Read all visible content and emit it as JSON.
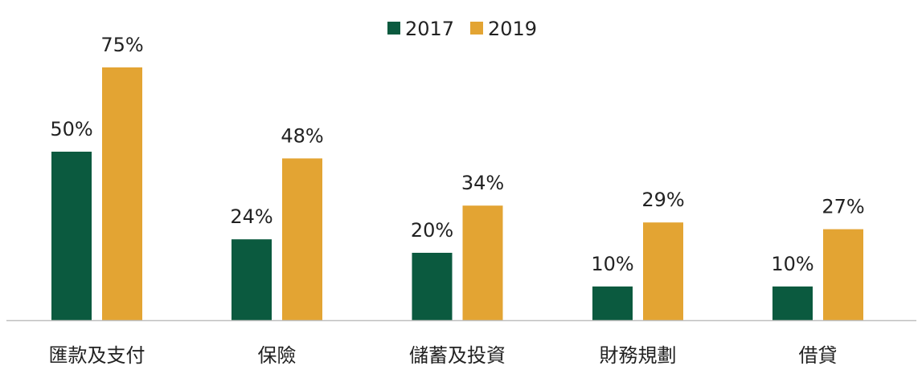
{
  "chart_data": {
    "type": "bar",
    "title": "",
    "xlabel": "",
    "ylabel": "",
    "categories": [
      "匯款及支付",
      "保險",
      "儲蓄及投資",
      "財務規劃",
      "借貸"
    ],
    "series": [
      {
        "name": "2017",
        "values": [
          50,
          24,
          20,
          10,
          10
        ],
        "labels": [
          "50%",
          "24%",
          "20%",
          "10%",
          "10%"
        ],
        "color": "#0b5a3f"
      },
      {
        "name": "2019",
        "values": [
          75,
          48,
          34,
          29,
          27
        ],
        "labels": [
          "75%",
          "48%",
          "34%",
          "29%",
          "27%"
        ],
        "color": "#e3a433"
      }
    ],
    "ylim": [
      0,
      75
    ],
    "y_unit": "%",
    "grid": false,
    "legend": "top-center",
    "axis_color": "#bfbfbf",
    "text_color": "#222222"
  }
}
